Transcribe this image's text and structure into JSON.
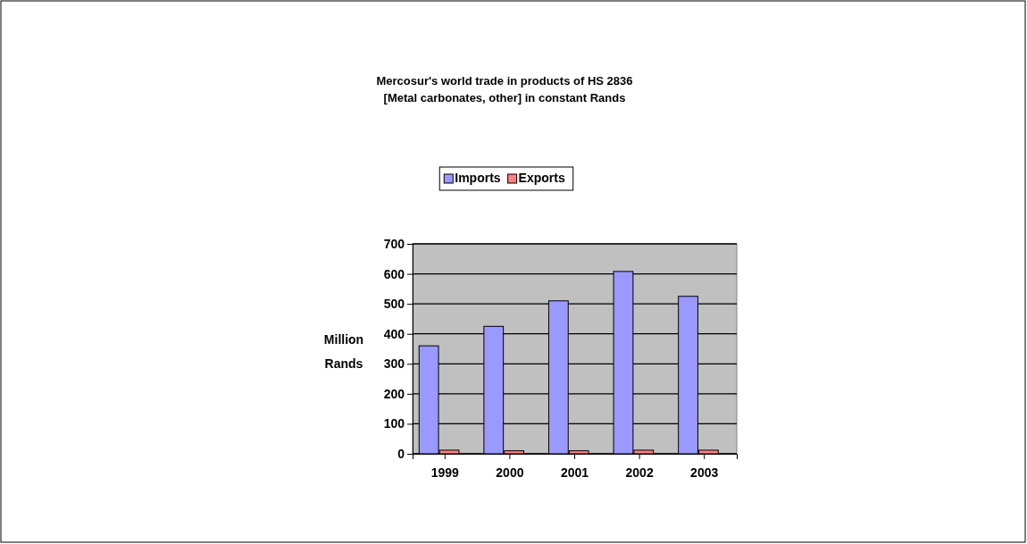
{
  "chart_data": {
    "type": "bar",
    "title": "Mercosur's world trade in  products of HS 2836 [Metal carbonates, other] in constant Rands",
    "ylabel": "Million Rands",
    "categories": [
      "1999",
      "2000",
      "2001",
      "2002",
      "2003"
    ],
    "series": [
      {
        "name": "Imports",
        "color": "#9999ff",
        "values": [
          360,
          425,
          510,
          608,
          525
        ]
      },
      {
        "name": "Exports",
        "color": "#ff8080",
        "values": [
          12,
          10,
          10,
          12,
          12
        ]
      }
    ],
    "ylim": [
      0,
      700
    ],
    "yticks": [
      0,
      100,
      200,
      300,
      400,
      500,
      600,
      700
    ],
    "grid": "y",
    "legend": "top"
  }
}
